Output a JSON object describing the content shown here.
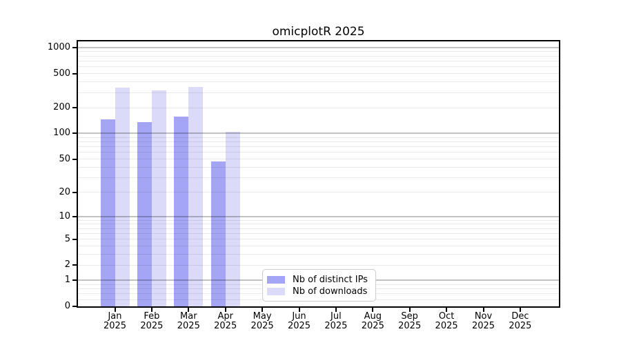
{
  "title": "omicplotR 2025",
  "legend": {
    "items": [
      {
        "label": "Nb of distinct IPs",
        "color": "#a5a5f6"
      },
      {
        "label": "Nb of downloads",
        "color": "#dbdbf9"
      }
    ]
  },
  "colors": {
    "ips_bar": "#a5a5f6",
    "downloads_bar": "#dbdbf9",
    "spine": "#000000",
    "legend_border": "#cccccc",
    "background": "#ffffff",
    "text": "#000000"
  },
  "x_axis": {
    "months": [
      "Jan",
      "Feb",
      "Mar",
      "Apr",
      "May",
      "Jun",
      "Jul",
      "Aug",
      "Sep",
      "Oct",
      "Nov",
      "Dec"
    ],
    "year_label": "2025"
  },
  "y_axis": {
    "ticks": [
      1000,
      500,
      200,
      100,
      50,
      20,
      10,
      5,
      2,
      1,
      0
    ]
  },
  "chart_data": {
    "type": "bar",
    "title": "omicplotR 2025",
    "categories": [
      "Jan 2025",
      "Feb 2025",
      "Mar 2025",
      "Apr 2025",
      "May 2025",
      "Jun 2025",
      "Jul 2025",
      "Aug 2025",
      "Sep 2025",
      "Oct 2025",
      "Nov 2025",
      "Dec 2025"
    ],
    "series": [
      {
        "name": "Nb of distinct IPs",
        "key": "ips",
        "color": "#a5a5f6",
        "values": [
          145,
          137,
          158,
          47,
          0,
          0,
          0,
          0,
          0,
          0,
          0,
          0
        ]
      },
      {
        "name": "Nb of downloads",
        "key": "downloads",
        "color": "#dbdbf9",
        "values": [
          340,
          320,
          350,
          105,
          0,
          0,
          0,
          0,
          0,
          0,
          0,
          0
        ]
      }
    ],
    "y_scale": "log1p",
    "y_ticks": [
      1000,
      500,
      200,
      100,
      50,
      20,
      10,
      5,
      2,
      1,
      0
    ],
    "ylim": [
      0,
      1180
    ],
    "grid": "horizontal",
    "legend_position": "bottom-center-inside"
  }
}
